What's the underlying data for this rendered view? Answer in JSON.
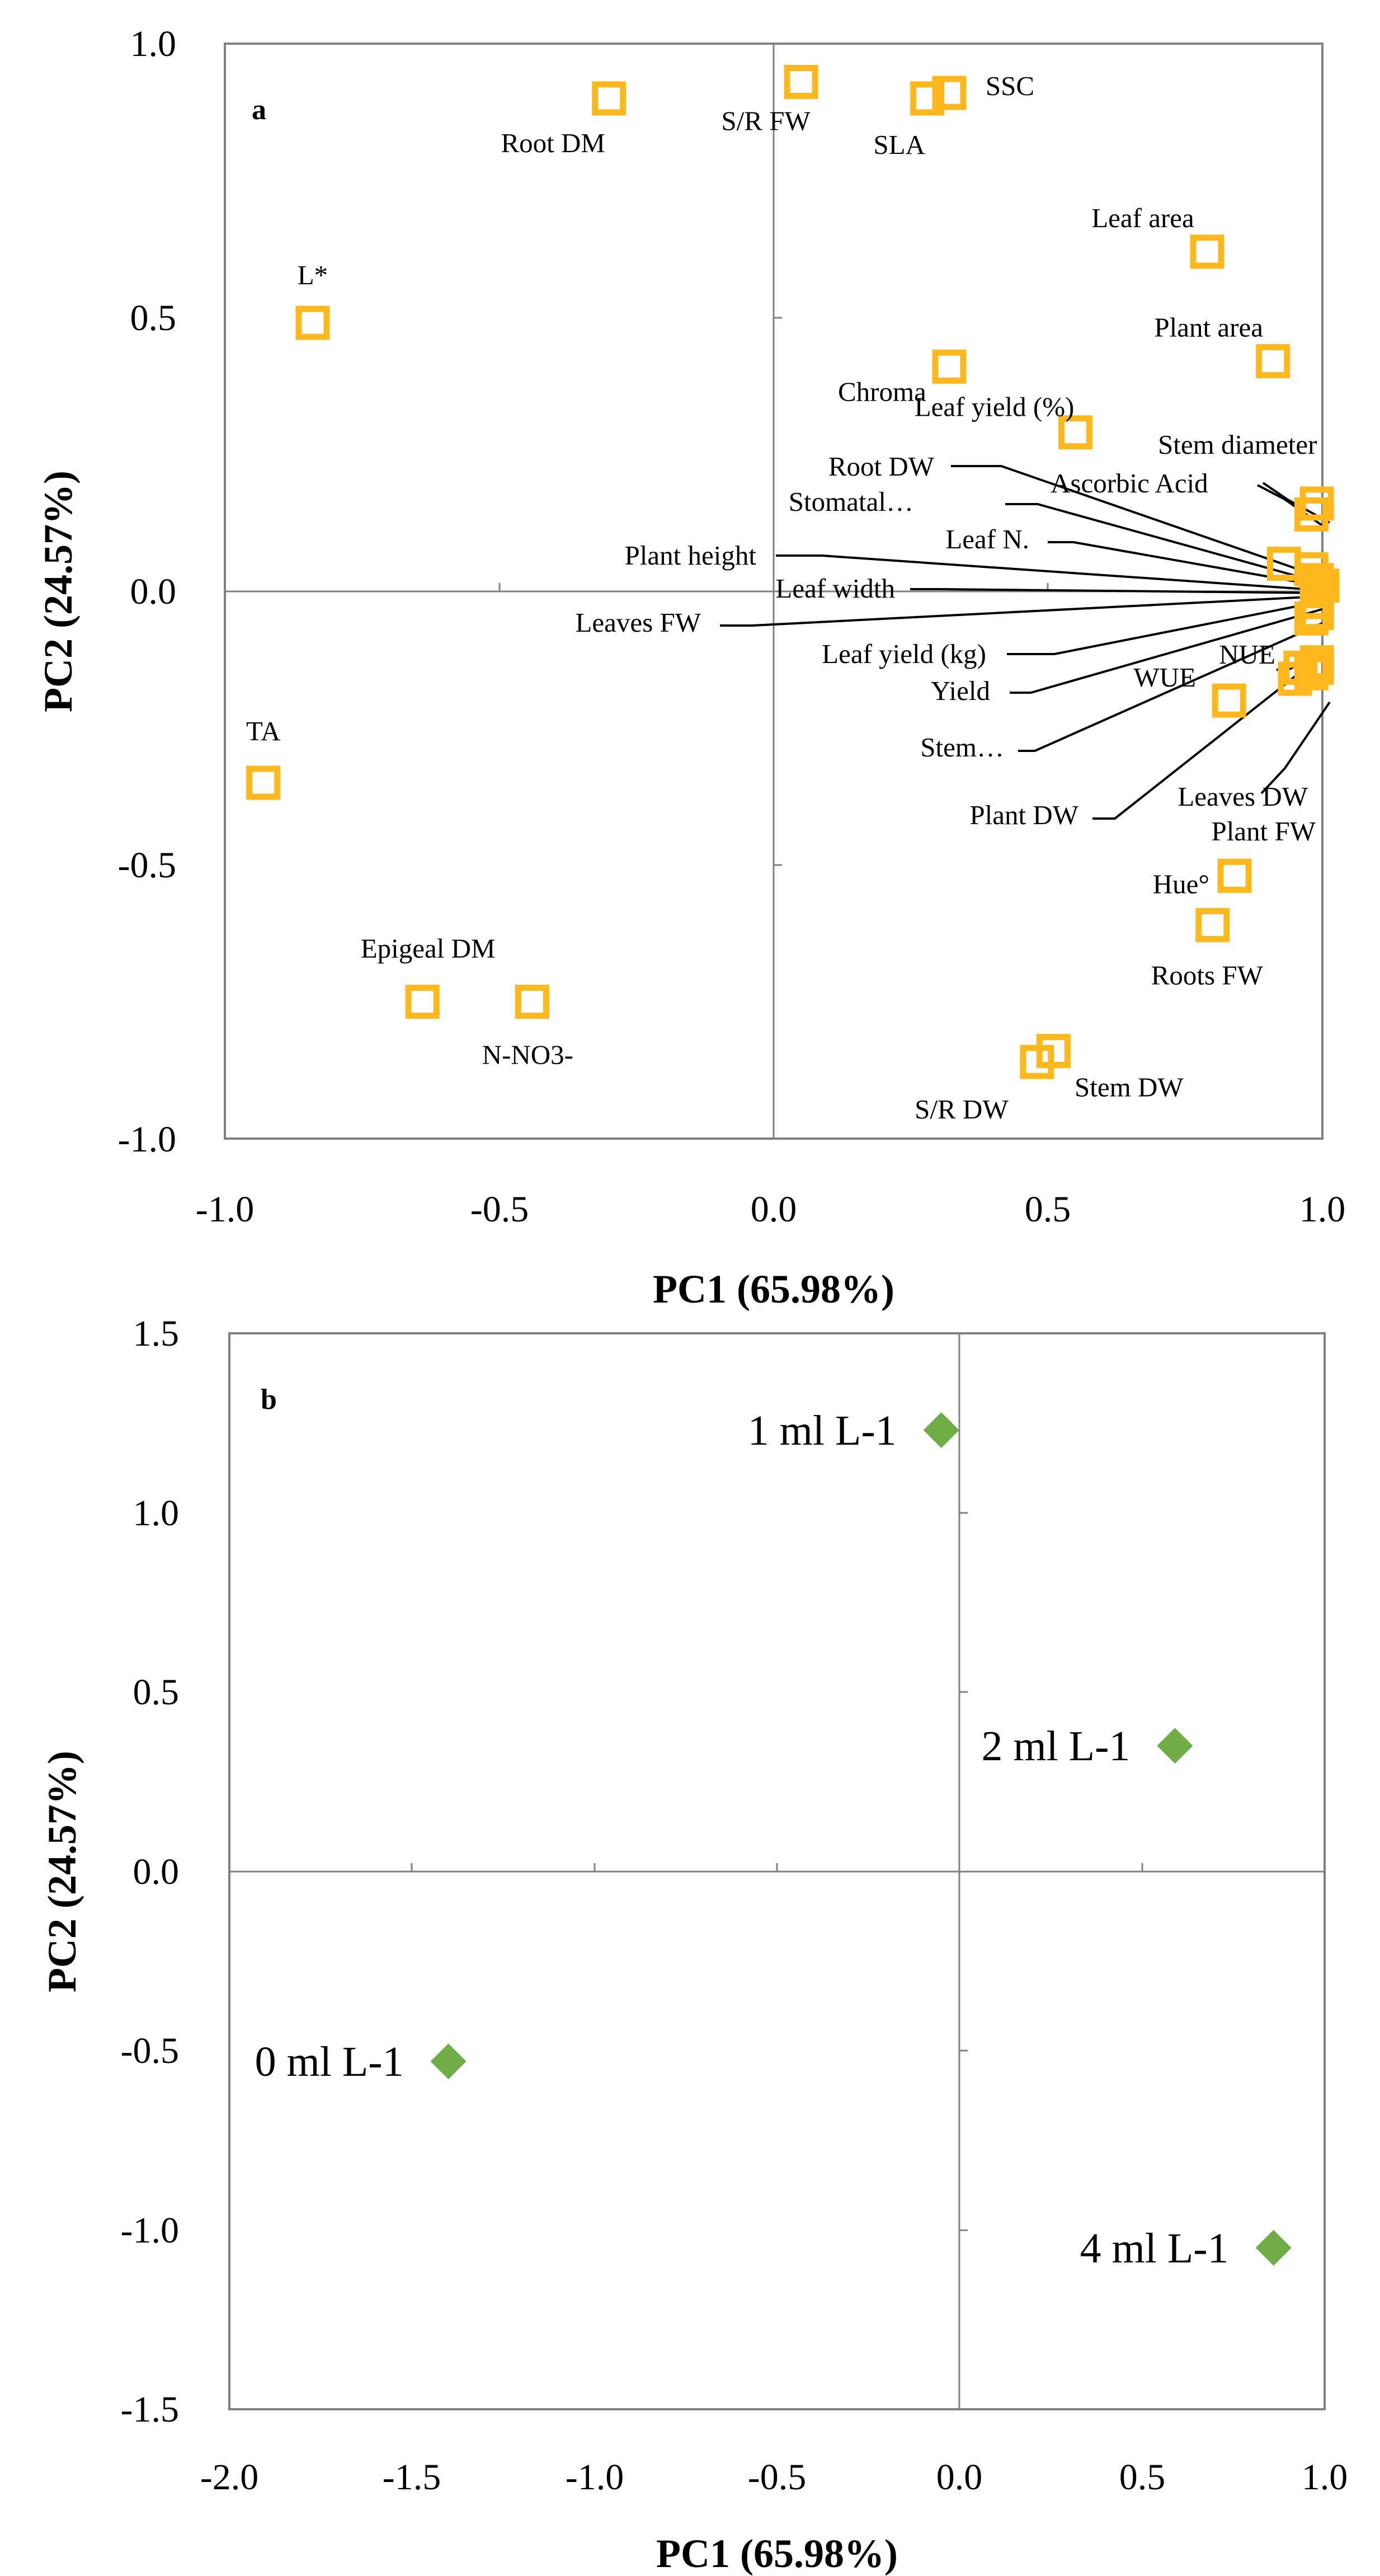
{
  "colors": {
    "loading_marker": "#FFB81C",
    "score_marker": "#70AD47",
    "axis": "#808080"
  },
  "chart_data": [
    {
      "type": "scatter",
      "panel": "a",
      "xlabel": "PC1 (65.98%)",
      "ylabel": "PC2 (24.57%)",
      "xlim": [
        -1.0,
        1.0
      ],
      "ylim": [
        -1.0,
        1.0
      ],
      "xticks": [
        "-1.0",
        "-0.5",
        "0.0",
        "0.5",
        "1.0"
      ],
      "yticks": [
        "1.0",
        "0.5",
        "0.0",
        "-0.5",
        "-1.0"
      ],
      "points": [
        {
          "label": "Root DM",
          "x": -0.3,
          "y": 0.9
        },
        {
          "label": "S/R FW",
          "x": 0.05,
          "y": 0.93
        },
        {
          "label": "SLA",
          "x": 0.28,
          "y": 0.9
        },
        {
          "label": "SSC",
          "x": 0.32,
          "y": 0.91
        },
        {
          "label": "L*",
          "x": -0.84,
          "y": 0.49
        },
        {
          "label": "Leaf area",
          "x": 0.79,
          "y": 0.62
        },
        {
          "label": "Plant area",
          "x": 0.91,
          "y": 0.42
        },
        {
          "label": "Chroma",
          "x": 0.32,
          "y": 0.41
        },
        {
          "label": "Leaf yield (%)",
          "x": 0.55,
          "y": 0.29
        },
        {
          "label": "Stem diameter",
          "x": 0.99,
          "y": 0.16
        },
        {
          "label": "Ascorbic Acid",
          "x": 0.98,
          "y": 0.14
        },
        {
          "label": "Root DW",
          "x": 0.93,
          "y": 0.05
        },
        {
          "label": "Stomatal…",
          "x": 0.98,
          "y": 0.04
        },
        {
          "label": "Leaf N.",
          "x": 0.99,
          "y": 0.02
        },
        {
          "label": "Plant height",
          "x": 1.0,
          "y": 0.01
        },
        {
          "label": "Leaf width",
          "x": 0.99,
          "y": 0.0
        },
        {
          "label": "Leaves FW",
          "x": 0.99,
          "y": -0.02
        },
        {
          "label": "Leaf yield (kg)",
          "x": 0.99,
          "y": -0.04
        },
        {
          "label": "Yield",
          "x": 0.98,
          "y": -0.05
        },
        {
          "label": "NUE",
          "x": 0.99,
          "y": -0.14
        },
        {
          "label": "WUE",
          "x": 0.95,
          "y": -0.16
        },
        {
          "label": "Stem…",
          "x": 0.83,
          "y": -0.2
        },
        {
          "label": "Leaves DW",
          "x": 0.98,
          "y": -0.15
        },
        {
          "label": "Plant DW",
          "x": 0.96,
          "y": -0.14
        },
        {
          "label": "Plant FW",
          "x": 0.99,
          "y": -0.13
        },
        {
          "label": "TA",
          "x": -0.93,
          "y": -0.35
        },
        {
          "label": "Hue°",
          "x": 0.84,
          "y": -0.52
        },
        {
          "label": "Roots FW",
          "x": 0.8,
          "y": -0.61
        },
        {
          "label": "Epigeal DM",
          "x": -0.64,
          "y": -0.75
        },
        {
          "label": "N-NO3-",
          "x": -0.44,
          "y": -0.75
        },
        {
          "label": "S/R DW",
          "x": 0.48,
          "y": -0.86
        },
        {
          "label": "Stem DW",
          "x": 0.51,
          "y": -0.84
        }
      ]
    },
    {
      "type": "scatter",
      "panel": "b",
      "xlabel": "PC1 (65.98%)",
      "ylabel": "PC2 (24.57%)",
      "xlim": [
        -2.0,
        1.0
      ],
      "ylim": [
        -1.5,
        1.5
      ],
      "xticks": [
        "-2.0",
        "-1.5",
        "-1.0",
        "-0.5",
        "0.0",
        "0.5",
        "1.0"
      ],
      "yticks": [
        "1.5",
        "1.0",
        "0.5",
        "0.0",
        "-0.5",
        "-1.0",
        "-1.5"
      ],
      "points": [
        {
          "label": "1 ml L-1",
          "x": -0.05,
          "y": 1.23
        },
        {
          "label": "2 ml L-1",
          "x": 0.59,
          "y": 0.35
        },
        {
          "label": "0 ml L-1",
          "x": -1.4,
          "y": -0.53
        },
        {
          "label": "4 ml L-1",
          "x": 0.86,
          "y": -1.05
        }
      ]
    }
  ]
}
